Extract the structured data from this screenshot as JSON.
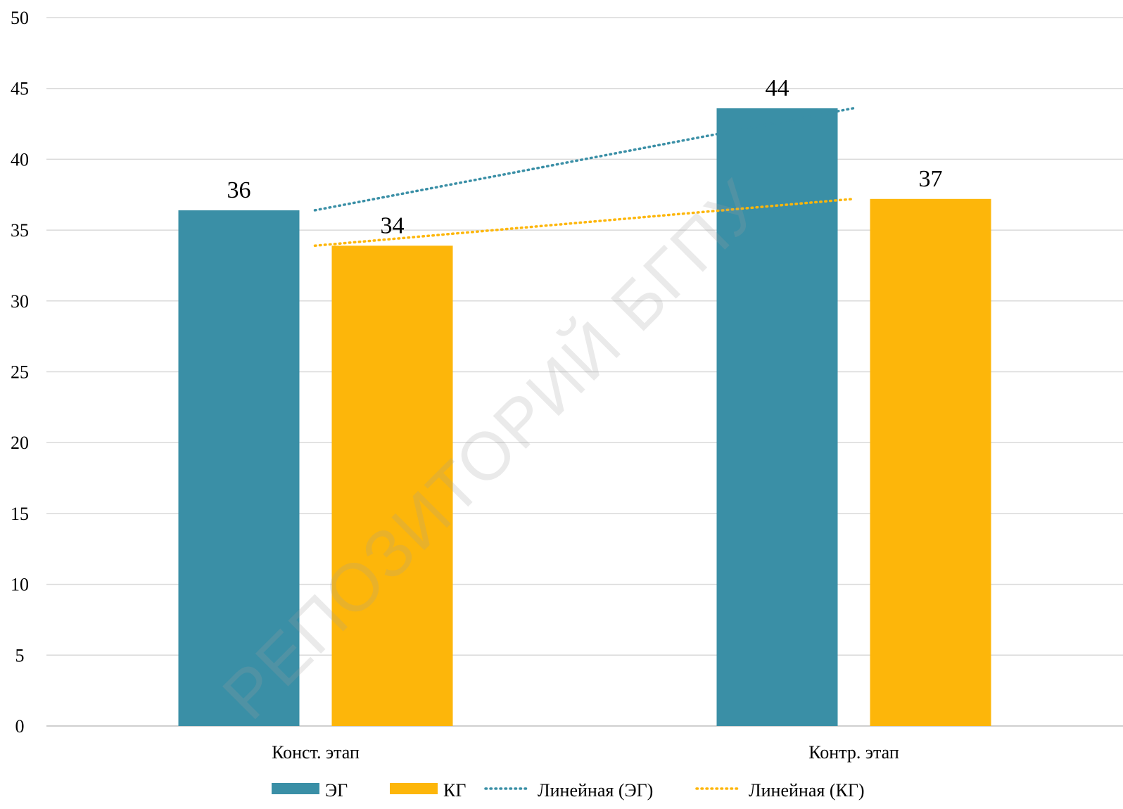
{
  "watermark": "РЕПОЗИТОРИЙ БГПУ",
  "chart_data": {
    "type": "bar",
    "categories": [
      "Конст. этап",
      "Контр. этап"
    ],
    "series": [
      {
        "name": "ЭГ",
        "values": [
          36.4,
          43.6
        ],
        "labels": [
          "36",
          "44"
        ],
        "color": "#3A8FA6"
      },
      {
        "name": "КГ",
        "values": [
          33.9,
          37.2
        ],
        "labels": [
          "34",
          "37"
        ],
        "color": "#FDB60A"
      }
    ],
    "trendlines": [
      {
        "name": "Линейная (ЭГ)",
        "series": "ЭГ",
        "color": "#3A8FA6",
        "style": "dotted"
      },
      {
        "name": "Линейная (КГ)",
        "series": "КГ",
        "color": "#FDB60A",
        "style": "dotted"
      }
    ],
    "ylim": [
      0,
      50
    ],
    "yticks": [
      0,
      5,
      10,
      15,
      20,
      25,
      30,
      35,
      40,
      45,
      50
    ],
    "grid": true,
    "legend": "bottom"
  }
}
